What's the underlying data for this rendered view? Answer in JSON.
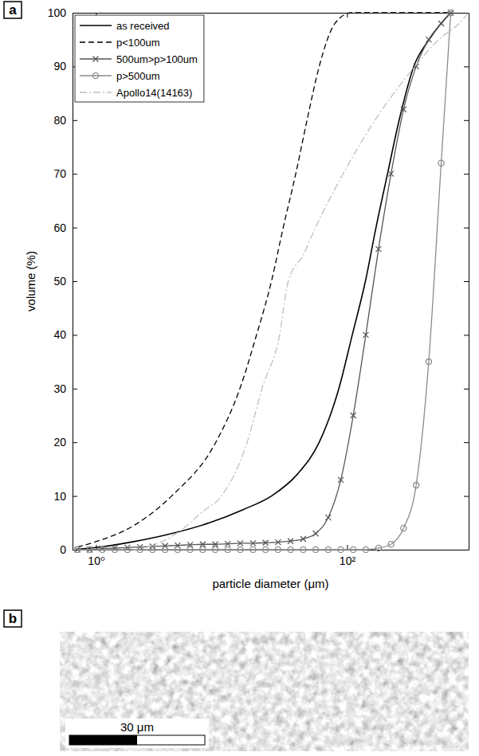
{
  "chart_data": {
    "type": "line",
    "panel": "a",
    "xlabel": "particle diameter (μm)",
    "ylabel": "volume (%)",
    "log": "x",
    "grid": false,
    "legend": "upper left",
    "xlim": [
      0.65,
      930
    ],
    "xticks": [
      {
        "value": 1,
        "label": "10⁰"
      },
      {
        "value": 100,
        "label": "10²"
      }
    ],
    "ylim": [
      0,
      100
    ],
    "yticks": [
      0,
      10,
      20,
      30,
      40,
      50,
      60,
      70,
      80,
      90,
      100
    ],
    "series": [
      {
        "name": "as received",
        "color": "#000000",
        "line_style": "solid",
        "marker": "none",
        "x": [
          0.71,
          1,
          2,
          4,
          8,
          15,
          25,
          40,
          60,
          86,
          110,
          140,
          170,
          210,
          260,
          340,
          450,
          560,
          670
        ],
        "values": [
          0.1,
          0.4,
          1.5,
          3,
          5,
          7.5,
          10,
          14,
          20,
          30,
          40,
          50,
          60,
          70,
          80,
          90,
          95,
          98,
          100
        ]
      },
      {
        "name": "p<100um",
        "color": "#000000",
        "line_style": "dashed",
        "marker": "none",
        "x": [
          0.71,
          1,
          2,
          4,
          9,
          14,
          19,
          25,
          31,
          39,
          48,
          60,
          80,
          108,
          670
        ],
        "values": [
          0.5,
          1.5,
          4.5,
          10,
          20,
          30,
          40,
          50,
          60,
          70,
          80,
          90,
          98,
          100,
          100
        ]
      },
      {
        "name": "500um>p>100um",
        "color": "#555555",
        "line_style": "solid",
        "marker": "x",
        "x": [
          0.71,
          0.89,
          1.12,
          1.41,
          1.78,
          2.24,
          2.82,
          3.55,
          4.47,
          5.62,
          7.08,
          8.91,
          11.2,
          14.1,
          17.8,
          22.4,
          28.2,
          35.5,
          44.7,
          56.2,
          70.8,
          89.1,
          112,
          141,
          178,
          224,
          282,
          355,
          447,
          562,
          670
        ],
        "values": [
          0,
          0,
          0.2,
          0.3,
          0.4,
          0.5,
          0.6,
          0.7,
          0.8,
          0.9,
          1,
          1,
          1.1,
          1.2,
          1.2,
          1.3,
          1.4,
          1.6,
          2,
          3,
          6,
          13,
          25,
          40,
          56,
          70,
          82,
          90,
          95,
          98,
          100
        ]
      },
      {
        "name": "p>500um",
        "color": "#8c8c8c",
        "line_style": "solid",
        "marker": "o",
        "x": [
          0.71,
          0.89,
          1.12,
          1.41,
          1.78,
          2.24,
          2.82,
          3.55,
          4.47,
          5.62,
          7.08,
          8.91,
          11.2,
          14.1,
          17.8,
          22.4,
          28.2,
          35.5,
          44.7,
          56.2,
          70.8,
          89.1,
          112,
          141,
          178,
          224,
          282,
          355,
          447,
          562,
          670
        ],
        "values": [
          0,
          0,
          0,
          0,
          0,
          0,
          0,
          0,
          0,
          0,
          0,
          0,
          0,
          0,
          0,
          0,
          0,
          0,
          0,
          0,
          0,
          0,
          0,
          0,
          0.3,
          1,
          4,
          12,
          35,
          72,
          100
        ]
      },
      {
        "name": "Apollo14(14163)",
        "color": "#c0c0c0",
        "line_style": "dashdot",
        "marker": "none",
        "x": [
          2,
          3,
          5,
          7,
          10,
          16,
          21,
          29,
          34,
          45,
          56,
          93,
          167,
          347,
          537,
          780,
          930
        ],
        "values": [
          0,
          1,
          4,
          7,
          10,
          20,
          30,
          40,
          50,
          55,
          60,
          70,
          80,
          90,
          95,
          98,
          100
        ]
      }
    ]
  },
  "image": {
    "panel": "b",
    "scale_bar_label": "30 μm"
  }
}
